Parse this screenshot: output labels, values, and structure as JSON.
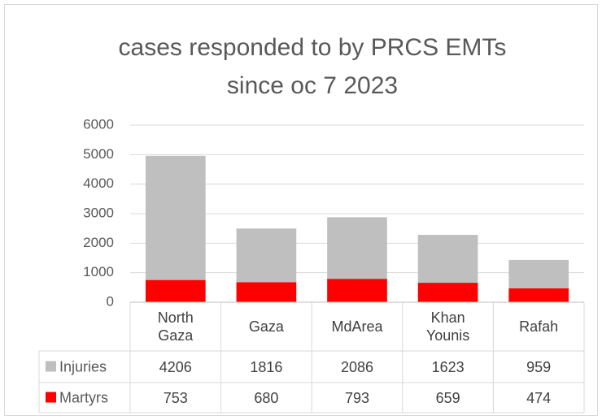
{
  "chart_data": {
    "type": "bar",
    "stacked": true,
    "title": "cases responded to by PRCS EMTs",
    "subtitle": "since oc 7 2023",
    "categories": [
      "North Gaza",
      "Gaza",
      "MdArea",
      "Khan Younis",
      "Rafah"
    ],
    "series": [
      {
        "name": "Injuries",
        "color": "#bfbfbf",
        "values": [
          4206,
          1816,
          2086,
          1623,
          959
        ]
      },
      {
        "name": "Martyrs",
        "color": "#ff0000",
        "values": [
          753,
          680,
          793,
          659,
          474
        ]
      }
    ],
    "stack_order": [
      "Martyrs",
      "Injuries"
    ],
    "ylim": [
      0,
      6000
    ],
    "yticks": [
      0,
      1000,
      2000,
      3000,
      4000,
      5000,
      6000
    ],
    "grid": true,
    "data_table": true
  }
}
